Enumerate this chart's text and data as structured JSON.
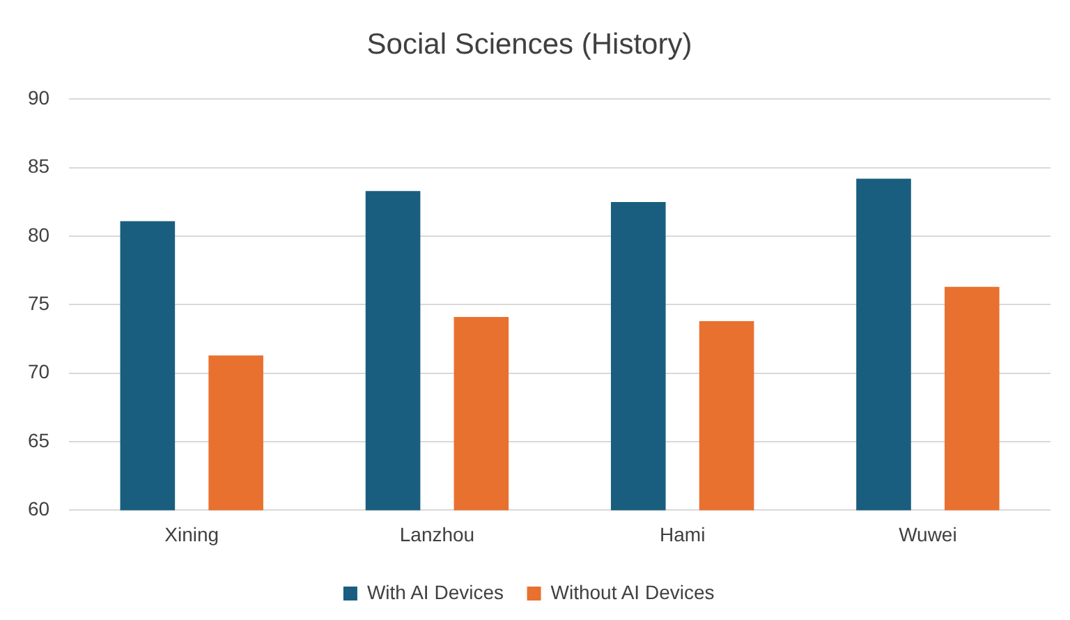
{
  "chart_data": {
    "type": "bar",
    "title": "Social Sciences (History)",
    "categories": [
      "Xining",
      "Lanzhou",
      "Hami",
      "Wuwei"
    ],
    "series": [
      {
        "name": "With AI Devices",
        "color": "#195e7e",
        "values": [
          81.1,
          83.3,
          82.5,
          84.2
        ]
      },
      {
        "name": "Without AI Devices",
        "color": "#e8712f",
        "values": [
          71.3,
          74.1,
          73.8,
          76.3
        ]
      }
    ],
    "ylim": [
      60,
      90
    ],
    "yticks": [
      60,
      65,
      70,
      75,
      80,
      85,
      90
    ],
    "grid": "y",
    "legend": "bottom"
  }
}
